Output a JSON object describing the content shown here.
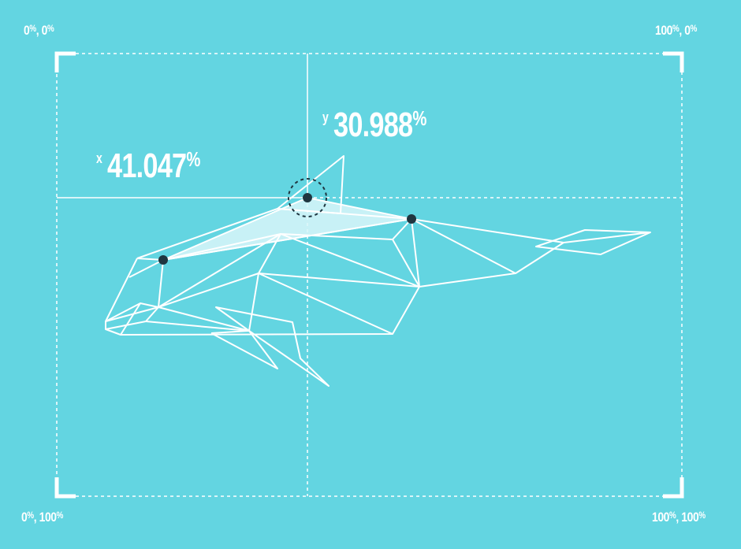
{
  "colors": {
    "background": "#63d5e1",
    "lines": "#ffffff",
    "points": "#1f3640",
    "highlight_fill": "#d9f6f9"
  },
  "corner_labels": {
    "top_left": {
      "x": "0",
      "y": "0",
      "unit": "%",
      "separator": ", "
    },
    "top_right": {
      "x": "100",
      "y": "0",
      "unit": "%",
      "separator": ", "
    },
    "bottom_left": {
      "x": "0",
      "y": "100",
      "unit": "%",
      "separator": ", "
    },
    "bottom_right": {
      "x": "100",
      "y": "100",
      "unit": "%",
      "separator": ", "
    }
  },
  "readout": {
    "x": {
      "letter": "x",
      "value": "41.047",
      "unit": "%"
    },
    "y": {
      "letter": "y",
      "value": "30.988",
      "unit": "%"
    }
  },
  "illustration": {
    "subject_icon": "polygonal-whale-icon",
    "reference_point_count": 3
  }
}
